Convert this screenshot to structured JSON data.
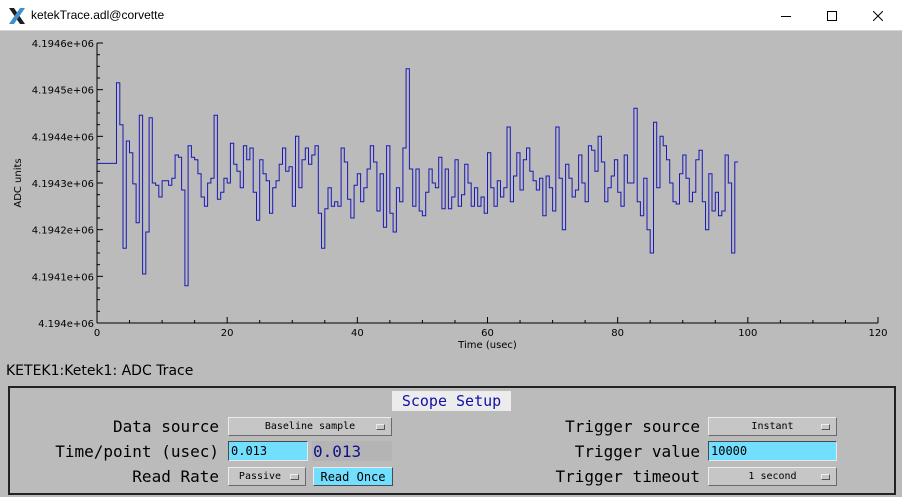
{
  "window": {
    "title": "ketekTrace.adl@corvette"
  },
  "plot": {
    "pv_label": "KETEK1:Ketek1: ADC Trace"
  },
  "chart_data": {
    "type": "line",
    "xlabel": "Time (usec)",
    "ylabel": "ADC units",
    "xlim": [
      0,
      120
    ],
    "ylim": [
      4194000,
      4194600
    ],
    "x_ticks": [
      "0",
      "20",
      "40",
      "60",
      "80",
      "100",
      "120"
    ],
    "y_ticks": [
      "4.194e+06",
      "4.1941e+06",
      "4.1942e+06",
      "4.1943e+06",
      "4.1944e+06",
      "4.1945e+06",
      "4.1946e+06"
    ],
    "grid": false,
    "line_color": "#1a1ab4",
    "x_step_usec": 0.5,
    "series": [
      {
        "values": [
          4194342,
          4194342,
          4194342,
          4194342,
          4194342,
          4194342,
          4194515,
          4194425,
          4194160,
          4194390,
          4194365,
          4194298,
          4194215,
          4194445,
          4194105,
          4194195,
          4194440,
          4194300,
          4194295,
          4194270,
          4194305,
          4194305,
          4194295,
          4194310,
          4194360,
          4194355,
          4194285,
          4194080,
          4194380,
          4194355,
          4194350,
          4194320,
          4194270,
          4194250,
          4194300,
          4194310,
          4194445,
          4194265,
          4194280,
          4194310,
          4194300,
          4194385,
          4194340,
          4194325,
          4194290,
          4194380,
          4194350,
          4194375,
          4194280,
          4194220,
          4194350,
          4194320,
          4194305,
          4194235,
          4194290,
          4194305,
          4194340,
          4194375,
          4194325,
          4194335,
          4194250,
          4194400,
          4194290,
          4194350,
          4194375,
          4194340,
          4194360,
          4194380,
          4194235,
          4194160,
          4194245,
          4194290,
          4194250,
          4194260,
          4194250,
          4194375,
          4194345,
          4194265,
          4194225,
          4194295,
          4194320,
          4194260,
          4194290,
          4194330,
          4194380,
          4194345,
          4194240,
          4194320,
          4194205,
          4194380,
          4194235,
          4194195,
          4194290,
          4194260,
          4194375,
          4194545,
          4194330,
          4194250,
          4194330,
          4194240,
          4194230,
          4194280,
          4194330,
          4194300,
          4194290,
          4194355,
          4194245,
          4194330,
          4194245,
          4194270,
          4194350,
          4194250,
          4194275,
          4194340,
          4194300,
          4194250,
          4194290,
          4194250,
          4194270,
          4194235,
          4194365,
          4194290,
          4194250,
          4194305,
          4194270,
          4194290,
          4194420,
          4194260,
          4194315,
          4194365,
          4194285,
          4194350,
          4194375,
          4194325,
          4194305,
          4194285,
          4194310,
          4194230,
          4194315,
          4194290,
          4194240,
          4194420,
          4194310,
          4194200,
          4194340,
          4194310,
          4194270,
          4194285,
          4194360,
          4194300,
          4194260,
          4194380,
          4194370,
          4194325,
          4194400,
          4194345,
          4194260,
          4194290,
          4194315,
          4194350,
          4194280,
          4194250,
          4194360,
          4194300,
          4194300,
          4194460,
          4194260,
          4194230,
          4194310,
          4194200,
          4194150,
          4194430,
          4194290,
          4194400,
          4194380,
          4194350,
          4194300,
          4194260,
          4194255,
          4194320,
          4194360,
          4194310,
          4194260,
          4194280,
          4194350,
          4194370,
          4194260,
          4194200,
          4194320,
          4194240,
          4194280,
          4194230,
          4194240,
          4194360,
          4194300,
          4194150,
          4194345
        ]
      }
    ]
  },
  "scope_setup": {
    "title": "Scope Setup",
    "data_source": {
      "label": "Data source",
      "value": "Baseline sample"
    },
    "time_per_point": {
      "label": "Time/point (usec)",
      "input_value": "0.013",
      "readback": "0.013"
    },
    "read_rate": {
      "label": "Read Rate",
      "value": "Passive",
      "read_once_label": "Read Once"
    },
    "trigger_source": {
      "label": "Trigger source",
      "value": "Instant"
    },
    "trigger_value": {
      "label": "Trigger value",
      "input_value": "10000"
    },
    "trigger_timeout": {
      "label": "Trigger timeout",
      "value": "1 second"
    }
  },
  "icons": {
    "app": "x-logo-icon",
    "minimize": "minimize-icon",
    "maximize": "maximize-icon",
    "close": "close-icon"
  }
}
